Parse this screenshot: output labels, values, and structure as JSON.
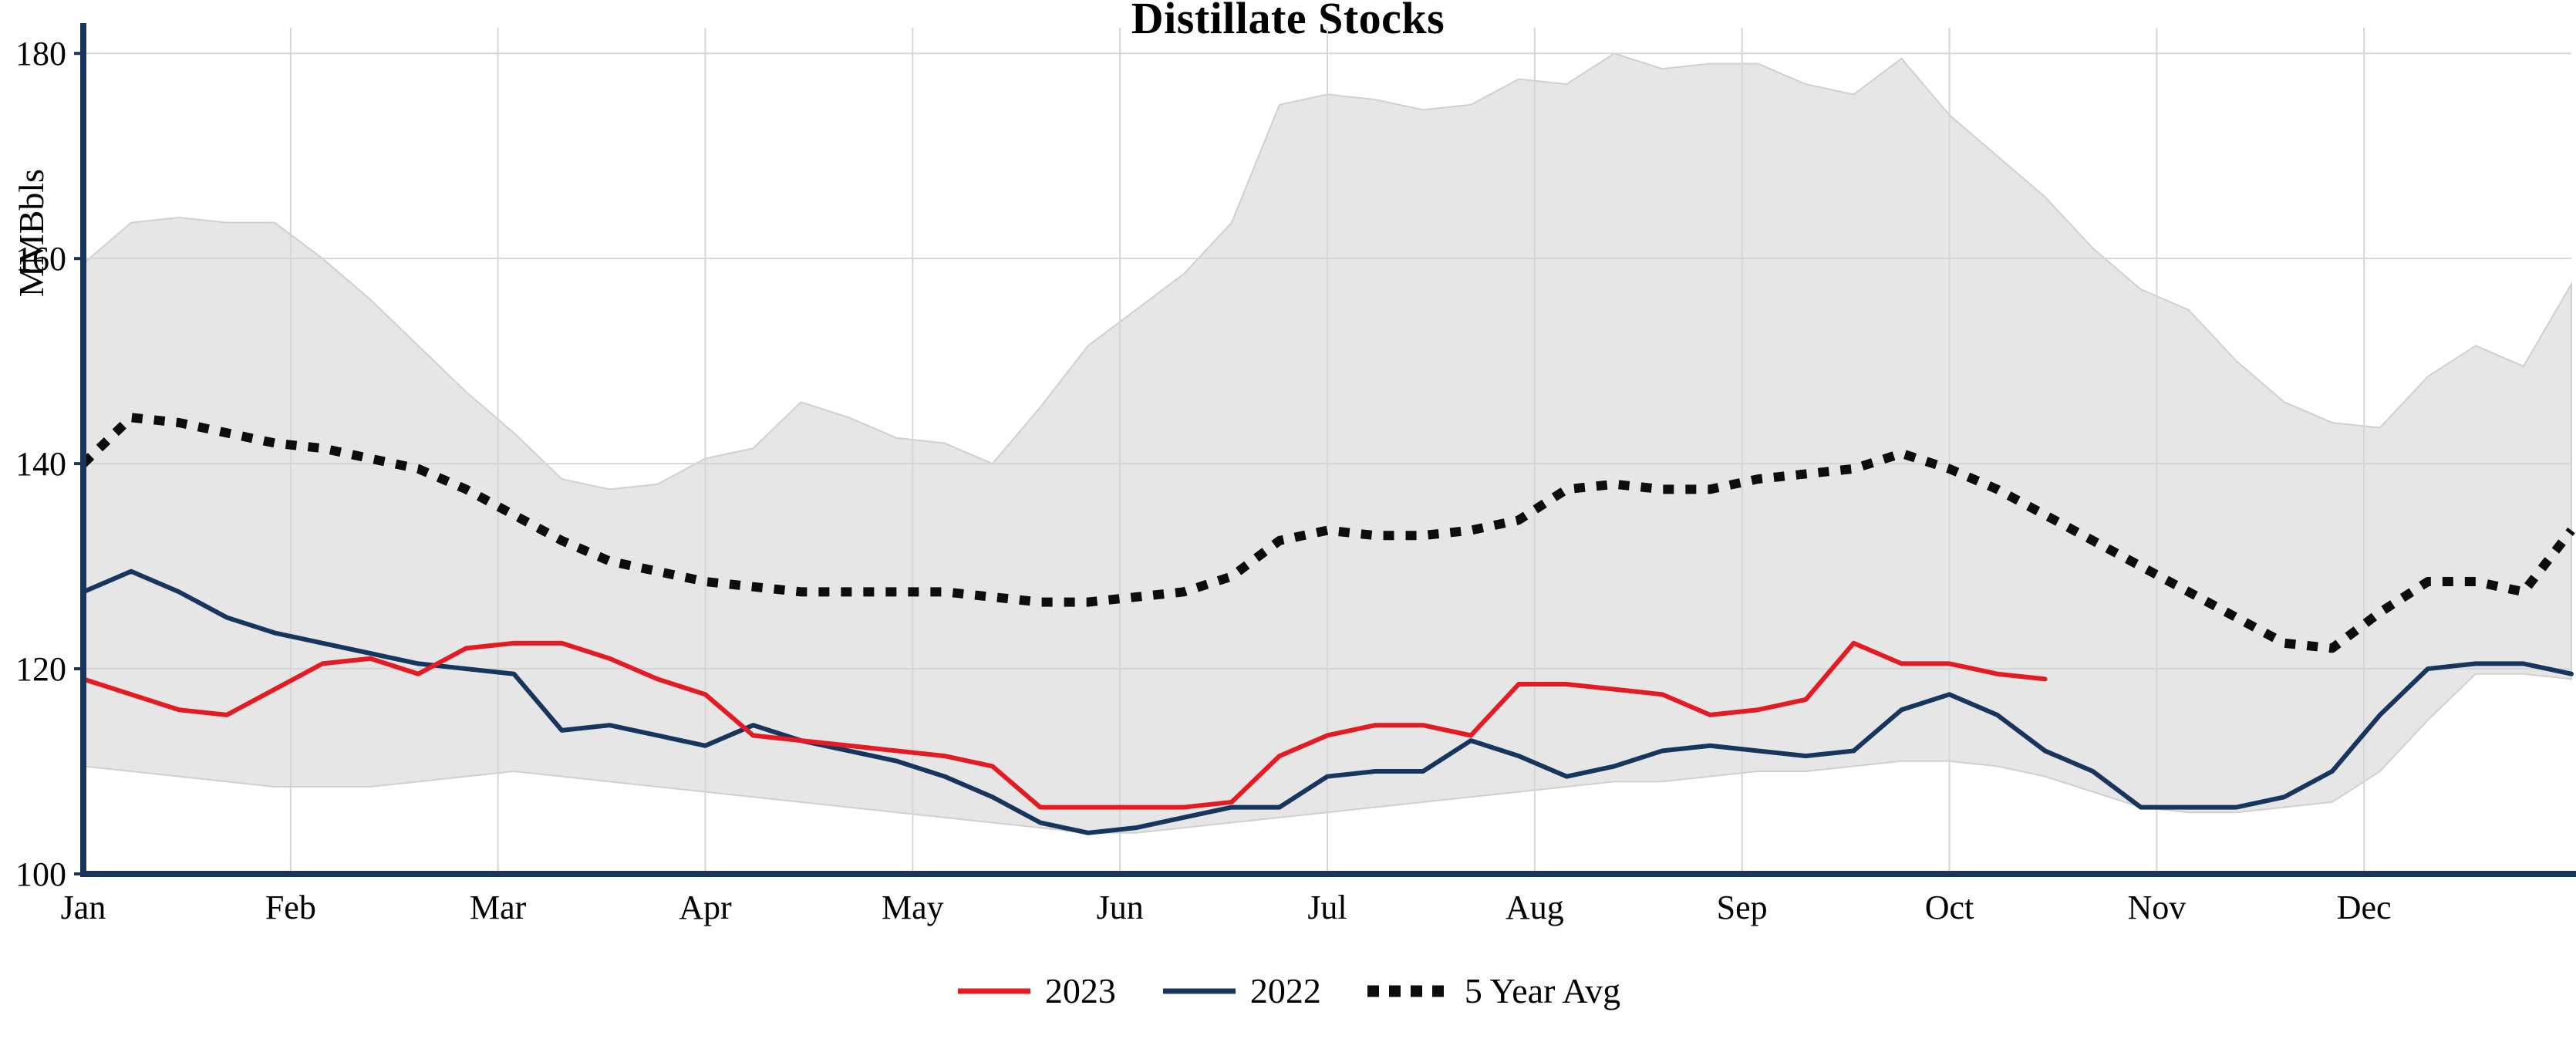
{
  "chart_data": {
    "type": "line",
    "title": "Distillate Stocks",
    "ylabel": "MMBbls",
    "ylim": [
      100,
      182.5
    ],
    "yticks": [
      100,
      120,
      140,
      160,
      180
    ],
    "months": [
      "Jan",
      "Feb",
      "Mar",
      "Apr",
      "May",
      "Jun",
      "Jul",
      "Aug",
      "Sep",
      "Oct",
      "Nov",
      "Dec"
    ],
    "x_unit": "week",
    "weeks_per_year": 52,
    "grid": true,
    "legend_position": "bottom",
    "axis_color": "#17365d",
    "grid_color": "#d6d6d6",
    "band": {
      "color": "#e6e6e6",
      "edge_color": "#d0d0d0",
      "upper": [
        159.5,
        163.5,
        164,
        163.5,
        163.5,
        160,
        156,
        151.5,
        147,
        143,
        138.5,
        137.5,
        138,
        140.5,
        141.5,
        146,
        144.5,
        142.5,
        142,
        140,
        145.5,
        151.5,
        155,
        158.5,
        163.5,
        175,
        176,
        175.5,
        174.5,
        175,
        177.5,
        177,
        180,
        178.5,
        179,
        179,
        177,
        176,
        179.5,
        174,
        170,
        166,
        161,
        157,
        155,
        150,
        146,
        144,
        143.5,
        148.5,
        151.5,
        149.5,
        157.5
      ],
      "lower": [
        110.5,
        110,
        109.5,
        109,
        108.5,
        108.5,
        108.5,
        109,
        109.5,
        110,
        109.5,
        109,
        108.5,
        108,
        107.5,
        107,
        106.5,
        106,
        105.5,
        105,
        104.5,
        104,
        104,
        104.5,
        105,
        105.5,
        106,
        106.5,
        107,
        107.5,
        108,
        108.5,
        109,
        109,
        109.5,
        110,
        110,
        110.5,
        111,
        111,
        110.5,
        109.5,
        108,
        106.5,
        106,
        106,
        106.5,
        107,
        110,
        115,
        119.5,
        119.5,
        119
      ]
    },
    "series": [
      {
        "name": "2023",
        "color": "#e41b23",
        "style": "solid",
        "start_week": 0,
        "values": [
          119,
          117.5,
          116,
          115.5,
          118,
          120.5,
          121,
          119.5,
          122,
          122.5,
          122.5,
          121,
          119,
          117.5,
          113.5,
          113,
          112.5,
          112,
          111.5,
          110.5,
          106.5,
          106.5,
          106.5,
          106.5,
          107,
          111.5,
          113.5,
          114.5,
          114.5,
          113.5,
          118.5,
          118.5,
          118,
          117.5,
          115.5,
          116,
          117,
          122.5,
          120.5,
          120.5,
          119.5,
          119
        ]
      },
      {
        "name": "2022",
        "color": "#17365d",
        "style": "solid",
        "start_week": 0,
        "values": [
          127.5,
          129.5,
          127.5,
          125,
          123.5,
          122.5,
          121.5,
          120.5,
          120,
          119.5,
          114,
          114.5,
          113.5,
          112.5,
          114.5,
          113,
          112,
          111,
          109.5,
          107.5,
          105,
          104,
          104.5,
          105.5,
          106.5,
          106.5,
          109.5,
          110,
          110,
          113,
          111.5,
          109.5,
          110.5,
          112,
          112.5,
          112,
          111.5,
          112,
          116,
          117.5,
          115.5,
          112,
          110,
          106.5,
          106.5,
          106.5,
          107.5,
          110,
          115.5,
          120,
          120.5,
          120.5,
          119.5
        ]
      },
      {
        "name": "5 Year Avg",
        "color": "#0d0d0d",
        "style": "dotted",
        "start_week": 0,
        "values": [
          140,
          144.5,
          144,
          143,
          142,
          141.5,
          140.5,
          139.5,
          137.5,
          135,
          132.5,
          130.5,
          129.5,
          128.5,
          128,
          127.5,
          127.5,
          127.5,
          127.5,
          127,
          126.5,
          126.5,
          127,
          127.5,
          129,
          132.5,
          133.5,
          133,
          133,
          133.5,
          134.5,
          137.5,
          138,
          137.5,
          137.5,
          138.5,
          139,
          139.5,
          141,
          139.5,
          137.5,
          135,
          132.5,
          130,
          127.5,
          125,
          122.5,
          122,
          125.5,
          128.5,
          128.5,
          127.5,
          133.5
        ]
      }
    ]
  }
}
